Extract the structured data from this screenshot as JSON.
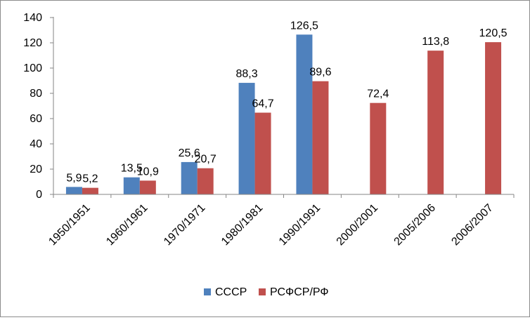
{
  "chart_data": {
    "type": "bar",
    "categories": [
      "1950/1951",
      "1960/1961",
      "1970/1971",
      "1980/1981",
      "1990/1991",
      "2000/2001",
      "2005/2006",
      "2006/2007"
    ],
    "series": [
      {
        "name": "СССР",
        "color": "#4f81bd",
        "values": [
          5.9,
          13.5,
          25.6,
          88.3,
          126.5,
          null,
          null,
          null
        ],
        "labels": [
          "5,9",
          "13,5",
          "25,6",
          "88,3",
          "126,5",
          "",
          "",
          ""
        ]
      },
      {
        "name": "РСФСР/РФ",
        "color": "#c0504d",
        "values": [
          5.2,
          10.9,
          20.7,
          64.7,
          89.6,
          72.4,
          113.8,
          120.5
        ],
        "labels": [
          "5,2",
          "10,9",
          "20,7",
          "64,7",
          "89,6",
          "72,4",
          "113,8",
          "120,5"
        ]
      }
    ],
    "y_ticks": [
      "0",
      "20",
      "40",
      "60",
      "80",
      "100",
      "120",
      "140"
    ],
    "ylim": [
      0,
      140
    ],
    "grid": false,
    "legend_position": "bottom"
  }
}
